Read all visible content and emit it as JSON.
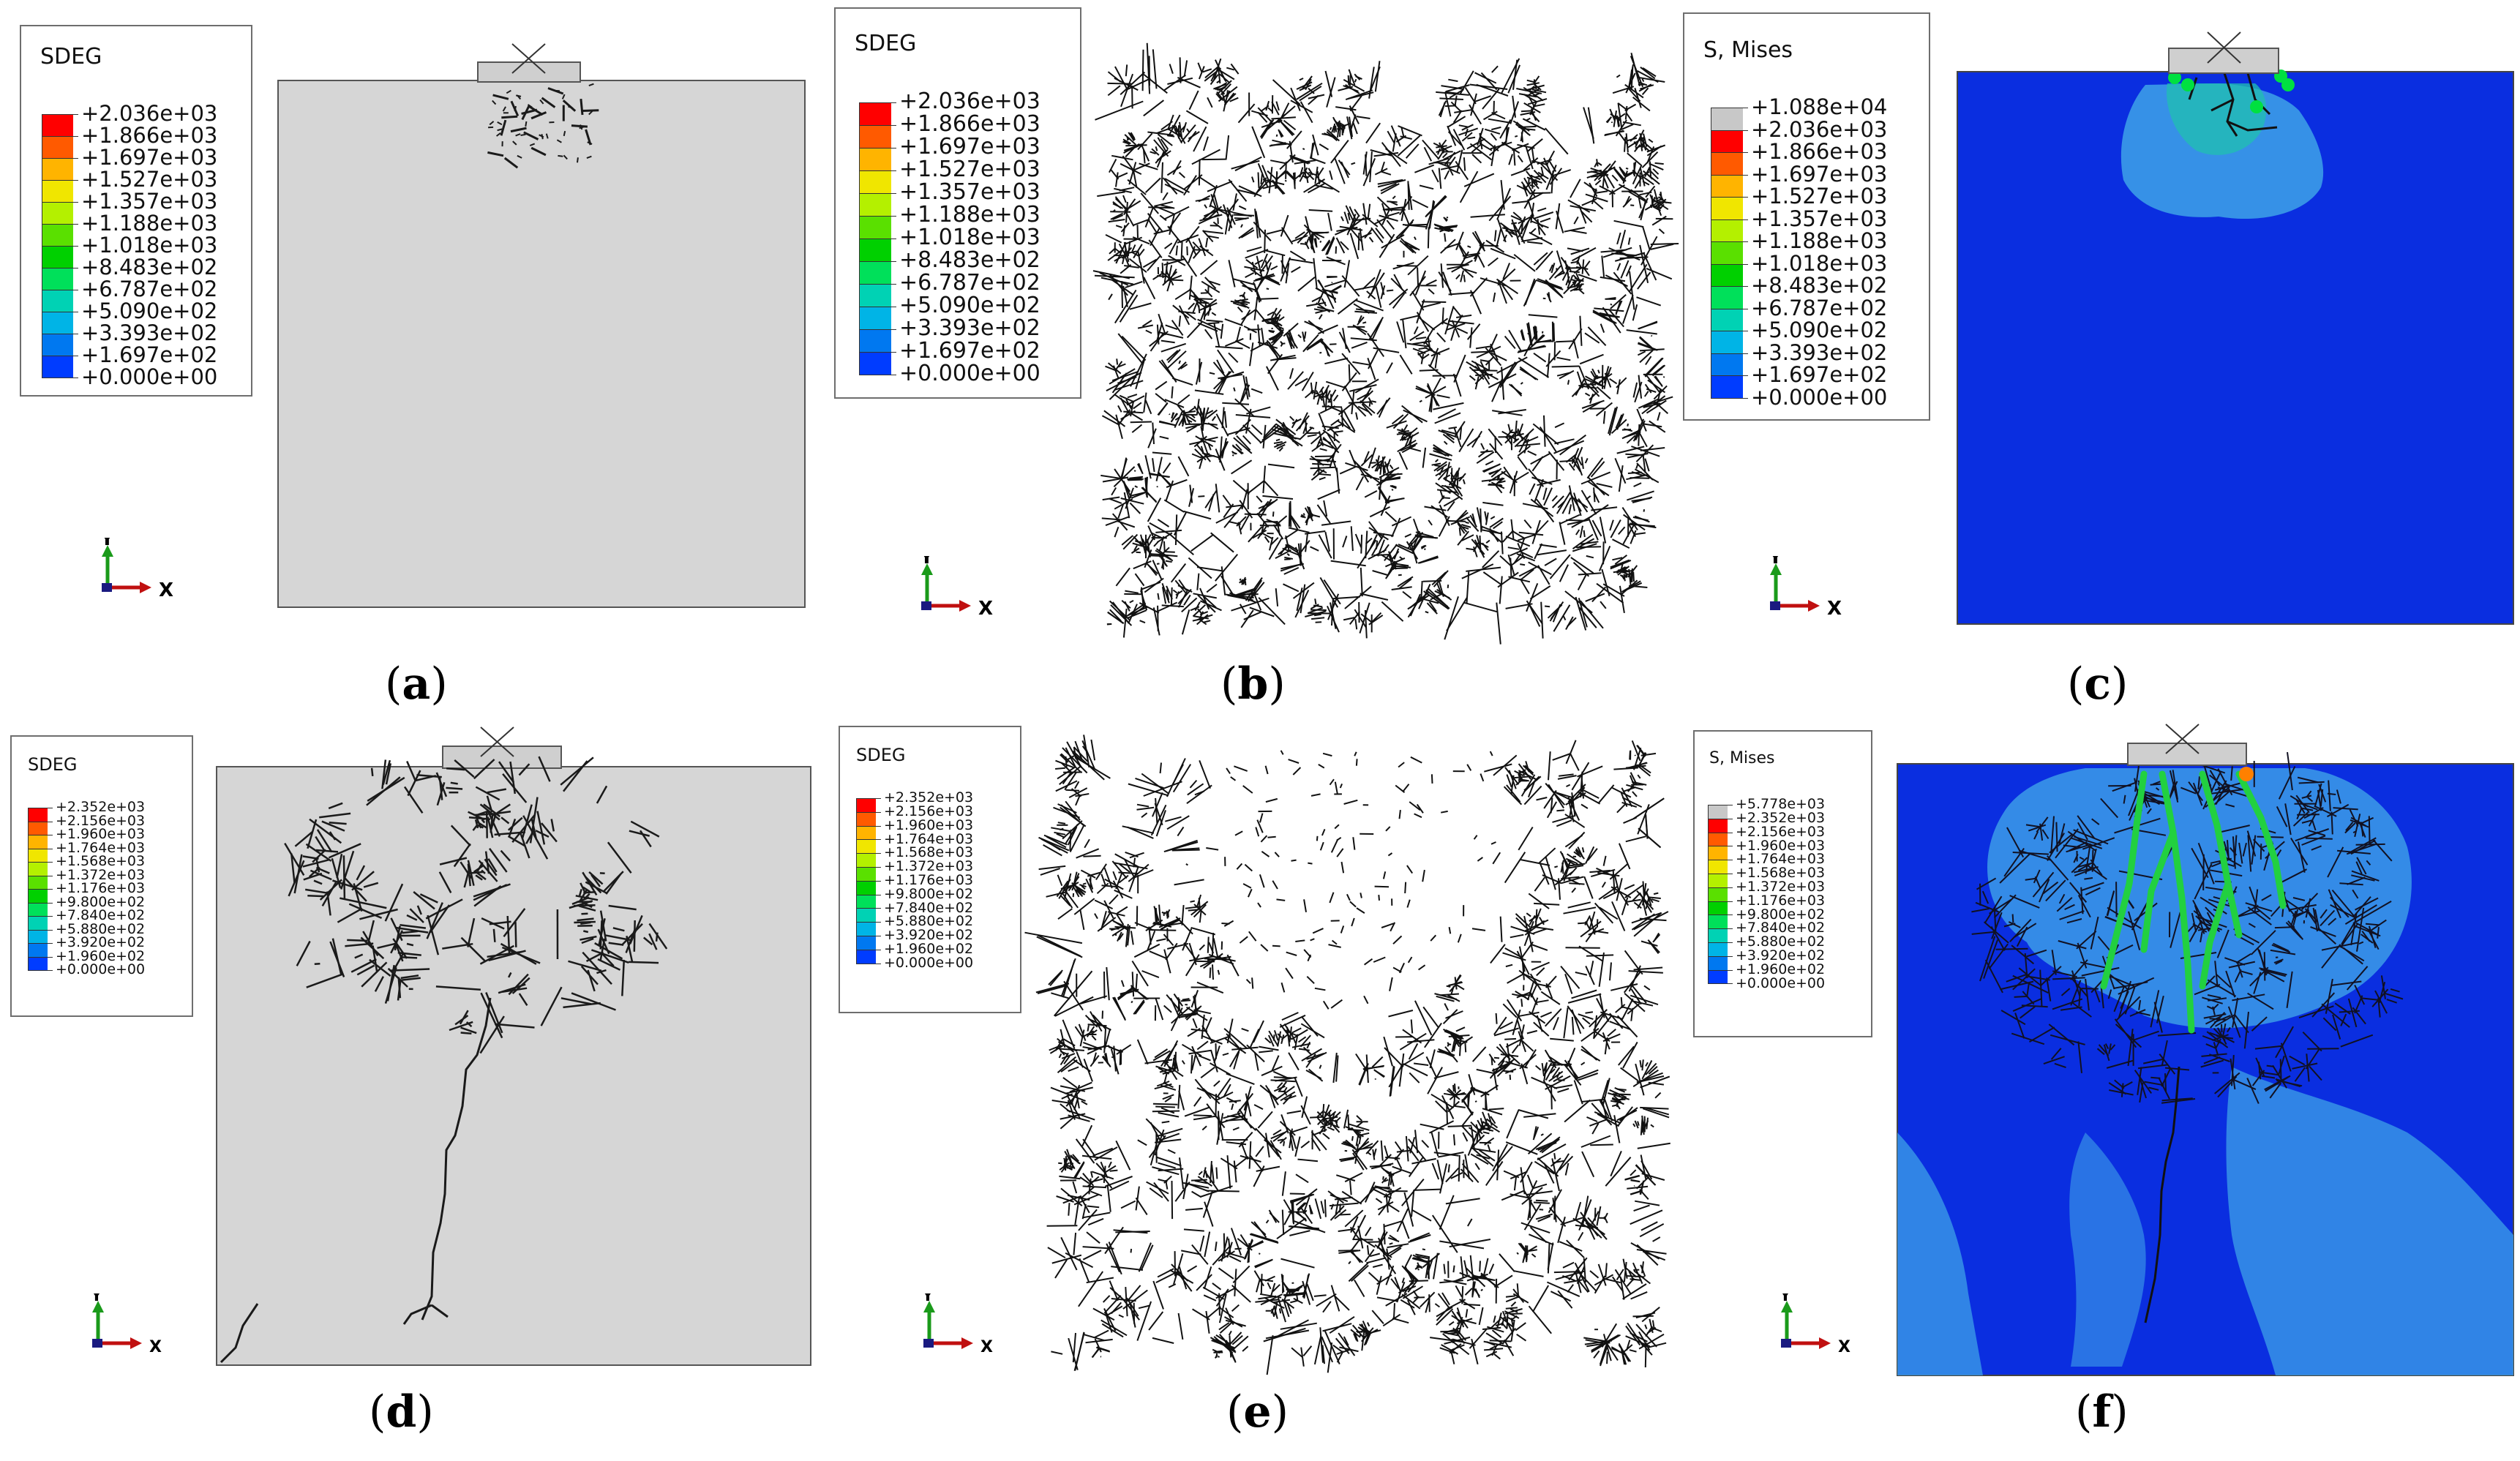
{
  "panels": [
    {
      "id": "a",
      "caption": "a",
      "legend": {
        "title": "SDEG",
        "extra_top": null,
        "values": [
          "+2.036e+03",
          "+1.866e+03",
          "+1.697e+03",
          "+1.527e+03",
          "+1.357e+03",
          "+1.188e+03",
          "+1.018e+03",
          "+8.483e+02",
          "+6.787e+02",
          "+5.090e+02",
          "+3.393e+02",
          "+1.697e+02",
          "+0.000e+00"
        ]
      }
    },
    {
      "id": "b",
      "caption": "b",
      "legend": {
        "title": "SDEG",
        "extra_top": null,
        "values": [
          "+2.036e+03",
          "+1.866e+03",
          "+1.697e+03",
          "+1.527e+03",
          "+1.357e+03",
          "+1.188e+03",
          "+1.018e+03",
          "+8.483e+02",
          "+6.787e+02",
          "+5.090e+02",
          "+3.393e+02",
          "+1.697e+02",
          "+0.000e+00"
        ]
      }
    },
    {
      "id": "c",
      "caption": "c",
      "legend": {
        "title": "S, Mises",
        "extra_top": "+1.088e+04",
        "values": [
          "+2.036e+03",
          "+1.866e+03",
          "+1.697e+03",
          "+1.527e+03",
          "+1.357e+03",
          "+1.188e+03",
          "+1.018e+03",
          "+8.483e+02",
          "+6.787e+02",
          "+5.090e+02",
          "+3.393e+02",
          "+1.697e+02",
          "+0.000e+00"
        ]
      }
    },
    {
      "id": "d",
      "caption": "d",
      "legend": {
        "title": "SDEG",
        "extra_top": null,
        "values": [
          "+2.352e+03",
          "+2.156e+03",
          "+1.960e+03",
          "+1.764e+03",
          "+1.568e+03",
          "+1.372e+03",
          "+1.176e+03",
          "+9.800e+02",
          "+7.840e+02",
          "+5.880e+02",
          "+3.920e+02",
          "+1.960e+02",
          "+0.000e+00"
        ]
      }
    },
    {
      "id": "e",
      "caption": "e",
      "legend": {
        "title": "SDEG",
        "extra_top": null,
        "values": [
          "+2.352e+03",
          "+2.156e+03",
          "+1.960e+03",
          "+1.764e+03",
          "+1.568e+03",
          "+1.372e+03",
          "+1.176e+03",
          "+9.800e+02",
          "+7.840e+02",
          "+5.880e+02",
          "+3.920e+02",
          "+1.960e+02",
          "+0.000e+00"
        ]
      }
    },
    {
      "id": "f",
      "caption": "f",
      "legend": {
        "title": "S, Mises",
        "extra_top": "+5.778e+03",
        "values": [
          "+2.352e+03",
          "+2.156e+03",
          "+1.960e+03",
          "+1.764e+03",
          "+1.568e+03",
          "+1.372e+03",
          "+1.176e+03",
          "+9.800e+02",
          "+7.840e+02",
          "+5.880e+02",
          "+3.920e+02",
          "+1.960e+02",
          "+0.000e+00"
        ]
      }
    }
  ],
  "axis_triad": {
    "y": "Y",
    "x": "X"
  },
  "colormap": [
    "#ff0000",
    "#ff5a00",
    "#ffb400",
    "#f0e600",
    "#b4f000",
    "#5ae000",
    "#00d000",
    "#00e05a",
    "#00d2b4",
    "#00b4e6",
    "#0078f0",
    "#003cff",
    "#0000d8"
  ],
  "colors": {
    "overflow": "#c8c8c8",
    "specimen_gray": "#d6d6d6",
    "mises_background": "#0a2ee0",
    "mises_light": "#3ea2e8",
    "crack": "#1a1a1a"
  }
}
